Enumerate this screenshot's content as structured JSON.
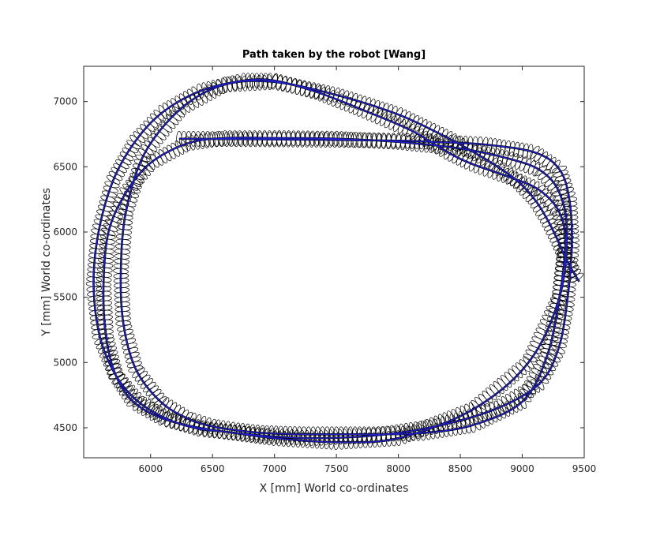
{
  "chart_data": {
    "type": "line",
    "title": "Path taken by the robot [Wang]",
    "xlabel": "X [mm] World co-ordinates",
    "ylabel": "Y [mm] World co-ordinates",
    "xlim": [
      5460,
      9500
    ],
    "ylim": [
      4270,
      7270
    ],
    "xticks": [
      6000,
      6500,
      7000,
      7500,
      8000,
      8500,
      9000,
      9500
    ],
    "yticks": [
      4500,
      5000,
      5500,
      6000,
      6500,
      7000
    ],
    "grid": false,
    "legend": "none",
    "series": [
      {
        "style": "estimated-path",
        "color": "#1f1fbf",
        "x": [
          6230,
          7000,
          7600,
          8000,
          8300,
          8700,
          9100,
          9300,
          9380,
          9400,
          9360,
          9290,
          9140,
          8800,
          8300,
          7800,
          7300,
          6900,
          6450,
          6100,
          5860,
          5720,
          5640,
          5620,
          5660,
          5800,
          6000,
          6300,
          6600,
          7000,
          7500,
          8000,
          8500,
          8900,
          9150,
          9300,
          9360,
          9300,
          9050,
          8600,
          8000,
          7500,
          7000,
          6600,
          6400,
          6150,
          5900,
          5720,
          5590,
          5540,
          5580,
          5700,
          5880,
          6100,
          6400,
          6750,
          7000,
          7350,
          7700,
          8100,
          8400,
          8600,
          8900,
          9140,
          9300,
          9350,
          9300,
          9200,
          9000,
          8600,
          8200,
          7800,
          7500,
          7200,
          6900,
          6700,
          6500,
          6300,
          6080,
          5880,
          5780,
          5760,
          5800,
          5950,
          6250,
          6600,
          7000,
          7500,
          8000,
          8400,
          8700,
          8950,
          9100,
          9200,
          9280,
          9350,
          9420,
          9460
        ],
        "y": [
          6715,
          6710,
          6705,
          6700,
          6690,
          6670,
          6610,
          6480,
          6250,
          5900,
          5450,
          5100,
          4840,
          4650,
          4510,
          4440,
          4420,
          4440,
          4490,
          4570,
          4700,
          4900,
          5200,
          5600,
          6000,
          6300,
          6530,
          6680,
          6720,
          6720,
          6715,
          6690,
          6640,
          6560,
          6470,
          6300,
          6000,
          5500,
          5000,
          4640,
          4420,
          4390,
          4420,
          4470,
          4490,
          4560,
          4700,
          4900,
          5200,
          5600,
          6000,
          6400,
          6700,
          6920,
          7080,
          7160,
          7160,
          7070,
          6940,
          6780,
          6610,
          6520,
          6420,
          6320,
          6150,
          5900,
          5500,
          5050,
          4700,
          4520,
          4460,
          4450,
          4450,
          4450,
          4460,
          4480,
          4510,
          4570,
          4700,
          4950,
          5300,
          5700,
          6150,
          6600,
          6950,
          7130,
          7150,
          7050,
          6900,
          6720,
          6560,
          6400,
          6250,
          6100,
          5950,
          5800,
          5680,
          5620
        ]
      },
      {
        "style": "measured-path-with-uncertainty-ellipses",
        "color": "#000000",
        "x": [
          6230,
          7000,
          7600,
          8000,
          8300,
          8700,
          9100,
          9300,
          9380,
          9400,
          9360,
          9290,
          9140,
          8800,
          8300,
          7800,
          7300,
          6900,
          6450,
          6100,
          5860,
          5720,
          5640,
          5620,
          5660,
          5800,
          6000,
          6300,
          6600,
          7000,
          7500,
          8000,
          8500,
          8900,
          9150,
          9300,
          9360,
          9300,
          9050,
          8600,
          8000,
          7500,
          7000,
          6600,
          6400,
          6150,
          5900,
          5720,
          5590,
          5540,
          5580,
          5700,
          5880,
          6100,
          6400,
          6750,
          7000,
          7350,
          7700,
          8100,
          8400,
          8600,
          8900,
          9140,
          9300,
          9350,
          9300,
          9200,
          9000,
          8600,
          8200,
          7800,
          7500,
          7200,
          6900,
          6700,
          6500,
          6300,
          6080,
          5880,
          5780,
          5760,
          5800,
          5950,
          6250,
          6600,
          7000,
          7500,
          8000,
          8400,
          8700,
          8950,
          9100,
          9200,
          9280,
          9350,
          9420,
          9460
        ],
        "y": [
          6715,
          6710,
          6705,
          6700,
          6690,
          6670,
          6610,
          6480,
          6250,
          5900,
          5450,
          5100,
          4840,
          4650,
          4510,
          4440,
          4420,
          4440,
          4490,
          4570,
          4700,
          4900,
          5200,
          5600,
          6000,
          6300,
          6530,
          6680,
          6720,
          6720,
          6715,
          6690,
          6640,
          6560,
          6470,
          6300,
          6000,
          5500,
          5000,
          4640,
          4420,
          4390,
          4420,
          4470,
          4490,
          4560,
          4700,
          4900,
          5200,
          5600,
          6000,
          6400,
          6700,
          6920,
          7080,
          7160,
          7160,
          7070,
          6940,
          6780,
          6610,
          6520,
          6420,
          6320,
          6150,
          5900,
          5500,
          5050,
          4700,
          4520,
          4460,
          4450,
          4450,
          4450,
          4460,
          4480,
          4510,
          4570,
          4700,
          4950,
          5300,
          5700,
          6150,
          6600,
          6950,
          7130,
          7150,
          7050,
          6900,
          6720,
          6560,
          6400,
          6250,
          6100,
          5950,
          5800,
          5680,
          5620
        ]
      }
    ]
  }
}
